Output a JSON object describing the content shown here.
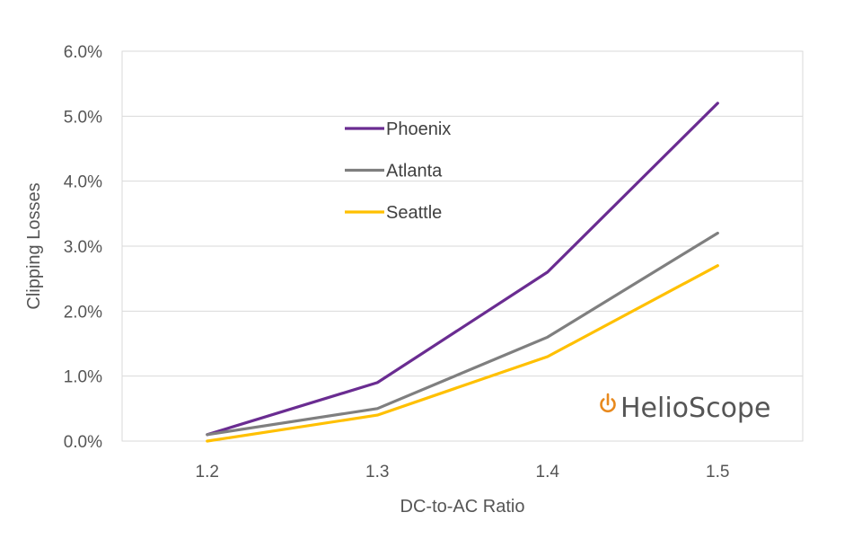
{
  "chart_data": {
    "type": "line",
    "title": "",
    "xlabel": "DC-to-AC Ratio",
    "ylabel": "Clipping Losses",
    "categories": [
      "1.2",
      "1.3",
      "1.4",
      "1.5"
    ],
    "ylim": [
      0,
      6
    ],
    "y_ticks": [
      "0.0%",
      "1.0%",
      "2.0%",
      "3.0%",
      "4.0%",
      "5.0%",
      "6.0%"
    ],
    "grid": "horizontal",
    "legend_position": "top-center",
    "series": [
      {
        "name": "Phoenix",
        "color": "#6a2c91",
        "values": [
          0.1,
          0.9,
          2.6,
          5.2
        ]
      },
      {
        "name": "Atlanta",
        "color": "#7f7f7f",
        "values": [
          0.1,
          0.5,
          1.6,
          3.2
        ]
      },
      {
        "name": "Seattle",
        "color": "#ffc000",
        "values": [
          0.0,
          0.4,
          1.3,
          2.7
        ]
      }
    ]
  },
  "logo": {
    "text": "HelioScope",
    "icon": "power-icon",
    "color": "#e8891d"
  }
}
